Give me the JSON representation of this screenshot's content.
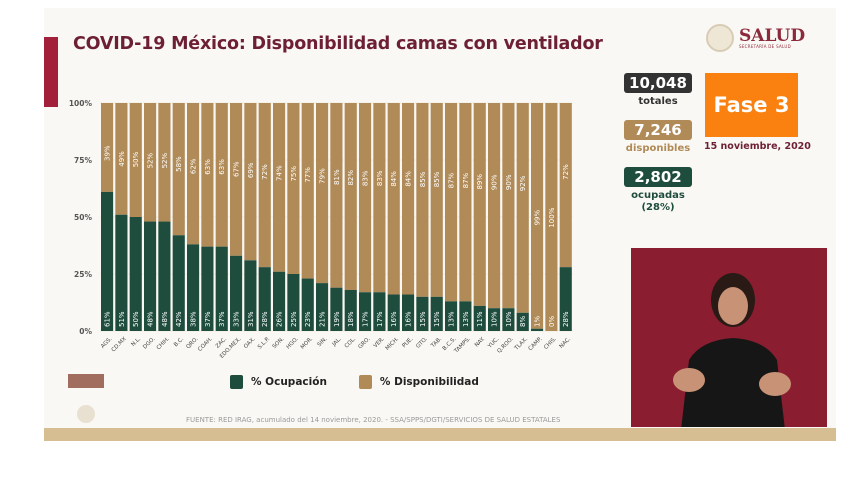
{
  "header": {
    "title": "COVID-19 México: Disponibilidad camas con ventilador"
  },
  "logo": {
    "name": "SALUD",
    "subtitle": "SECRETARÍA DE SALUD"
  },
  "stats": {
    "totales": {
      "value": "10,048",
      "label": "totales",
      "color": "#333333"
    },
    "disponibles": {
      "value": "7,246",
      "label": "disponibles",
      "color": "#b08a57"
    },
    "ocupadas": {
      "value": "2,802",
      "label": "ocupadas",
      "pct": "(28%)",
      "color": "#1e4d3e"
    }
  },
  "phase": {
    "label": "Fase 3",
    "color": "#fa8110",
    "date": "15 noviembre, 2020"
  },
  "legend": {
    "ocupacion": "% Ocupación",
    "disponibilidad": "% Disponibilidad"
  },
  "source": "FUENTE: RED IRAG, acumulado del 14 noviembre, 2020.  -  SSA/SPPS/DGTI/SERVICIOS DE SALUD ESTATALES",
  "chart_data": {
    "type": "bar",
    "stacked": true,
    "categories": [
      "AGS.",
      "CD.MX",
      "N.L.",
      "DGO.",
      "CHIH.",
      "B.C.",
      "QRO.",
      "COAH.",
      "ZAC.",
      "EDO.MEX.",
      "OAX.",
      "S.L.P.",
      "SON.",
      "HGO.",
      "MOR.",
      "SIN.",
      "JAL.",
      "COL.",
      "GRO.",
      "VER.",
      "MICH.",
      "PUE.",
      "GTO.",
      "TAB.",
      "B.C.S.",
      "TAMPS.",
      "NAY.",
      "YUC.",
      "Q.ROO.",
      "TLAX.",
      "CAMP.",
      "CHIS.",
      "NAC."
    ],
    "series": [
      {
        "name": "% Ocupación",
        "color": "#1e4d3e",
        "values": [
          61,
          51,
          50,
          48,
          48,
          42,
          38,
          37,
          37,
          33,
          31,
          28,
          26,
          25,
          23,
          21,
          19,
          18,
          17,
          17,
          16,
          16,
          15,
          15,
          13,
          13,
          11,
          10,
          10,
          8,
          1,
          0,
          28
        ]
      },
      {
        "name": "% Disponibilidad",
        "color": "#b08a57",
        "values": [
          39,
          49,
          50,
          52,
          52,
          58,
          62,
          63,
          63,
          67,
          69,
          72,
          74,
          75,
          77,
          79,
          81,
          82,
          83,
          83,
          84,
          84,
          85,
          85,
          87,
          87,
          89,
          90,
          90,
          92,
          99,
          100,
          72
        ]
      }
    ],
    "yticks": [
      "0%",
      "25%",
      "50%",
      "75%",
      "100%"
    ],
    "ylim": [
      0,
      100
    ],
    "grid": true,
    "legend": "bottom"
  }
}
